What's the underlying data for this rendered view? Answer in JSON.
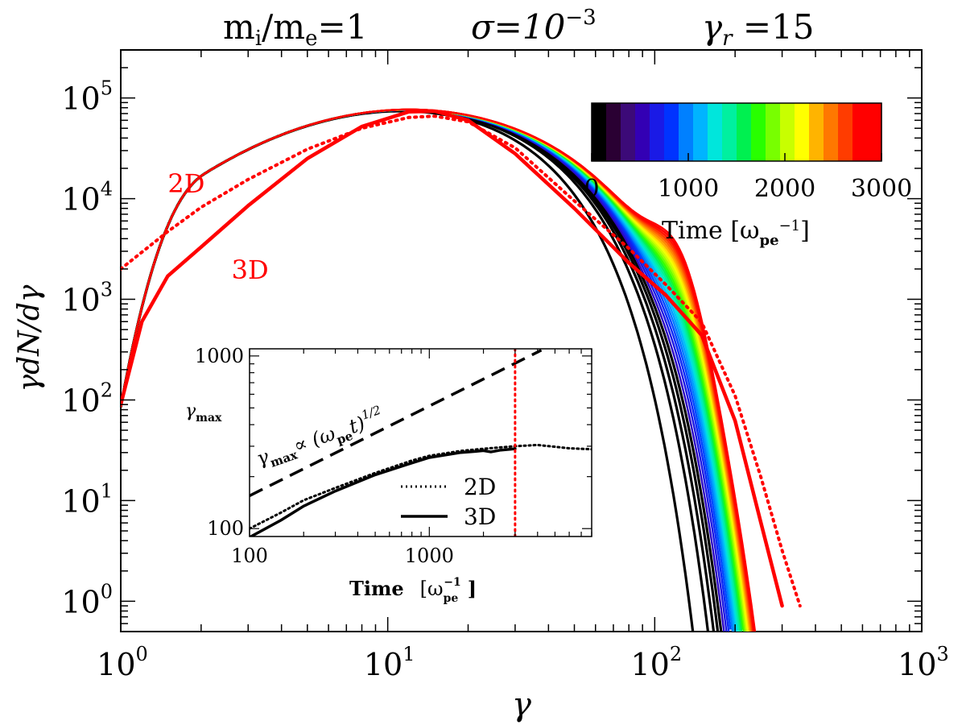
{
  "header": {
    "title_left": "m",
    "title_left_sub1": "i",
    "title_left_mid": "/m",
    "title_left_sub2": "e",
    "title_left_end": "=1",
    "title_mid": "σ=10",
    "title_mid_sup": "−3",
    "title_right": "γ",
    "title_right_sub": "r",
    "title_right_end": " =15"
  },
  "chart_data": [
    {
      "type": "line",
      "title": "m_i/m_e=1   σ=10^-3   γ_r=15",
      "xlabel": "γ",
      "ylabel": "γdN/dγ",
      "xscale": "log",
      "yscale": "log",
      "xlim": [
        1,
        1000
      ],
      "ylim": [
        0.5,
        300000
      ],
      "x_tick_labels": [
        {
          "value": 1,
          "base": "10",
          "exp": "0"
        },
        {
          "value": 10,
          "base": "10",
          "exp": "1"
        },
        {
          "value": 100,
          "base": "10",
          "exp": "2"
        },
        {
          "value": 1000,
          "base": "10",
          "exp": "3"
        }
      ],
      "y_tick_labels": [
        {
          "value": 1,
          "base": "10",
          "exp": "0"
        },
        {
          "value": 10,
          "base": "10",
          "exp": "1"
        },
        {
          "value": 100,
          "base": "10",
          "exp": "2"
        },
        {
          "value": 1000,
          "base": "10",
          "exp": "3"
        },
        {
          "value": 10000,
          "base": "10",
          "exp": "4"
        },
        {
          "value": 100000,
          "base": "10",
          "exp": "5"
        }
      ],
      "curve_params": {
        "description": "Family of 3D spectra at times 0..3000 (coloured by time) plus the final 2D spectrum (dotted red)",
        "n_curves": 30,
        "time_range": [
          0,
          3000
        ],
        "peak_gamma": 12.5,
        "peak_value": 78000,
        "cutoff_gamma_first": 48,
        "cutoff_gamma_last": 88,
        "bump_gamma_last": 130
      },
      "series": [
        {
          "name": "2D",
          "style": "dotted",
          "color": "#ff0000",
          "points": [
            [
              1,
              2000
            ],
            [
              1.5,
              4700
            ],
            [
              2,
              8200
            ],
            [
              3,
              15500
            ],
            [
              5,
              31000
            ],
            [
              8,
              50000
            ],
            [
              12,
              64000
            ],
            [
              15,
              66000
            ],
            [
              20,
              58000
            ],
            [
              30,
              32000
            ],
            [
              50,
              9500
            ],
            [
              80,
              3200
            ],
            [
              110,
              1400
            ],
            [
              150,
              590
            ],
            [
              200,
              110
            ],
            [
              250,
              17
            ],
            [
              300,
              3.2
            ],
            [
              350,
              0.9
            ]
          ]
        },
        {
          "name": "3D (t=3000)",
          "style": "solid",
          "color": "#ff0000",
          "points": [
            [
              1,
              90
            ],
            [
              1.2,
              600
            ],
            [
              1.5,
              1700
            ],
            [
              2,
              3300
            ],
            [
              3,
              8500
            ],
            [
              5,
              25000
            ],
            [
              8,
              52000
            ],
            [
              12,
              73000
            ],
            [
              15,
              74000
            ],
            [
              20,
              60000
            ],
            [
              30,
              28000
            ],
            [
              50,
              8000
            ],
            [
              80,
              2300
            ],
            [
              110,
              1100
            ],
            [
              150,
              440
            ],
            [
              200,
              62
            ],
            [
              250,
              6
            ],
            [
              300,
              0.9
            ]
          ]
        }
      ],
      "annotations": [
        {
          "text": "2D",
          "color": "#ff0000",
          "at": [
            1.5,
            11500
          ]
        },
        {
          "text": "3D",
          "color": "#ff0000",
          "at": [
            2.6,
            1600
          ]
        }
      ],
      "colorbar": {
        "label": "Time [ω",
        "label_sub": "pe",
        "label_sup": "−1",
        "label_end": "]",
        "range": [
          0,
          3000
        ],
        "tick_labels": [
          "0",
          "1000",
          "2000",
          "3000"
        ],
        "colors": [
          "#000000",
          "#2a0033",
          "#3c0a78",
          "#3300b4",
          "#1a1ae6",
          "#0033ff",
          "#0080ff",
          "#00b4ff",
          "#00e6dc",
          "#00f0a0",
          "#00f050",
          "#28ff00",
          "#78ff00",
          "#c8ff00",
          "#ffff00",
          "#ffb400",
          "#ff7800",
          "#ff3c00",
          "#ff0000",
          "#ff0000"
        ],
        "placement": "upper-right"
      }
    },
    {
      "type": "line",
      "title": "inset",
      "xlabel": "Time",
      "xlabel_unit": "[ω",
      "xlabel_unit_sub": "pe",
      "xlabel_unit_sup": "−1",
      "xlabel_unit_end": "]",
      "ylabel": "γ",
      "ylabel_sub": "max",
      "xscale": "log",
      "yscale": "log",
      "xlim": [
        100,
        8000
      ],
      "ylim": [
        90,
        1100
      ],
      "x_tick_labels": [
        {
          "value": 100,
          "text": "100"
        },
        {
          "value": 1000,
          "text": "1000"
        }
      ],
      "y_tick_labels": [
        {
          "value": 100,
          "text": "100"
        },
        {
          "value": 1000,
          "text": "1000"
        }
      ],
      "reference_line": {
        "label": "γ",
        "label_sub": "max",
        "label_mid": "∝ (ω",
        "label_sub2": "pe",
        "label_end": "t)",
        "label_sup": "1/2",
        "points": [
          [
            100,
            155
          ],
          [
            4200,
            1080
          ]
        ]
      },
      "vline": {
        "x": 3000,
        "color": "#ff0000",
        "style": "dotted"
      },
      "series": [
        {
          "name": "2D",
          "style": "dotted",
          "points": [
            [
              100,
              100
            ],
            [
              150,
              124
            ],
            [
              200,
              146
            ],
            [
              300,
              172
            ],
            [
              500,
              210
            ],
            [
              800,
              248
            ],
            [
              1000,
              264
            ],
            [
              1500,
              282
            ],
            [
              2000,
              290
            ],
            [
              3000,
              300
            ],
            [
              4000,
              305
            ],
            [
              5000,
              298
            ],
            [
              6000,
              292
            ],
            [
              8000,
              288
            ]
          ]
        },
        {
          "name": "3D",
          "style": "solid",
          "points": [
            [
              100,
              89
            ],
            [
              150,
              112
            ],
            [
              200,
              135
            ],
            [
              300,
              165
            ],
            [
              500,
              205
            ],
            [
              800,
              240
            ],
            [
              1000,
              258
            ],
            [
              1500,
              276
            ],
            [
              1800,
              280
            ],
            [
              2000,
              283
            ],
            [
              2200,
              278
            ],
            [
              2500,
              285
            ],
            [
              3000,
              290
            ]
          ]
        }
      ],
      "legend": {
        "placement": "lower-right",
        "entries": [
          {
            "label": "2D",
            "style": "dotted"
          },
          {
            "label": "3D",
            "style": "solid"
          }
        ]
      }
    }
  ]
}
